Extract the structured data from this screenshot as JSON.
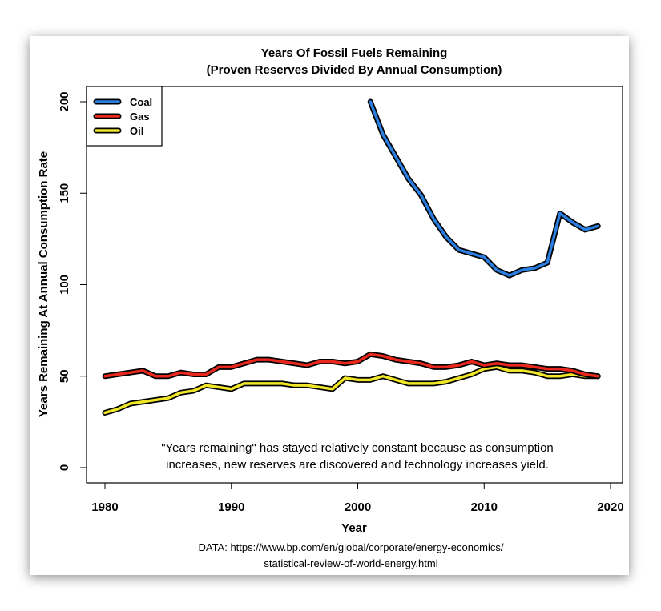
{
  "chart_data": {
    "type": "line",
    "title": "Years Of Fossil Fuels Remaining",
    "subtitle": "(Proven Reserves Divided By Annual Consumption)",
    "xlabel": "Year",
    "ylabel": "Years Remaining At Annual Consumption Rate",
    "xlim": [
      1978,
      2021
    ],
    "ylim": [
      -7,
      207
    ],
    "xticks": [
      "1980",
      "1990",
      "2000",
      "2010",
      "2020"
    ],
    "yticks": [
      "0",
      "50",
      "100",
      "150",
      "200"
    ],
    "grid": false,
    "legend_position": "top-left",
    "annotation": [
      "\"Years remaining\" has stayed relatively constant because as consumption",
      "increases, new reserves are discovered and technology increases yield."
    ],
    "source": [
      "DATA: https://www.bp.com/en/global/corporate/energy-economics/",
      "statistical-review-of-world-energy.html"
    ],
    "series": [
      {
        "name": "Coal",
        "color": "#2b7fe0",
        "x": [
          2001,
          2002,
          2003,
          2004,
          2005,
          2006,
          2007,
          2008,
          2009,
          2010,
          2011,
          2012,
          2013,
          2014,
          2015,
          2016,
          2017,
          2018,
          2019
        ],
        "values": [
          200,
          182,
          170,
          158,
          149,
          136,
          126,
          119,
          117,
          115,
          108,
          105,
          108,
          109,
          112,
          139,
          134,
          130,
          132
        ]
      },
      {
        "name": "Gas",
        "color": "#e8281c",
        "x": [
          1980,
          1981,
          1982,
          1983,
          1984,
          1985,
          1986,
          1987,
          1988,
          1989,
          1990,
          1991,
          1992,
          1993,
          1994,
          1995,
          1996,
          1997,
          1998,
          1999,
          2000,
          2001,
          2002,
          2003,
          2004,
          2005,
          2006,
          2007,
          2008,
          2009,
          2010,
          2011,
          2012,
          2013,
          2014,
          2015,
          2016,
          2017,
          2018,
          2019
        ],
        "values": [
          50,
          51,
          52,
          53,
          50,
          50,
          52,
          51,
          51,
          55,
          55,
          57,
          59,
          59,
          58,
          57,
          56,
          58,
          58,
          57,
          58,
          62,
          61,
          59,
          58,
          57,
          55,
          55,
          56,
          58,
          56,
          57,
          56,
          56,
          55,
          54,
          54,
          53,
          51,
          50
        ]
      },
      {
        "name": "Oil",
        "color": "#f0e62a",
        "x": [
          1980,
          1981,
          1982,
          1983,
          1984,
          1985,
          1986,
          1987,
          1988,
          1989,
          1990,
          1991,
          1992,
          1993,
          1994,
          1995,
          1996,
          1997,
          1998,
          1999,
          2000,
          2001,
          2002,
          2003,
          2004,
          2005,
          2006,
          2007,
          2008,
          2009,
          2010,
          2011,
          2012,
          2013,
          2014,
          2015,
          2016,
          2017,
          2018,
          2019
        ],
        "values": [
          30,
          32,
          35,
          36,
          37,
          38,
          41,
          42,
          45,
          44,
          43,
          46,
          46,
          46,
          46,
          45,
          45,
          44,
          43,
          49,
          48,
          48,
          50,
          48,
          46,
          46,
          46,
          47,
          49,
          51,
          54,
          55,
          53,
          53,
          52,
          50,
          50,
          51,
          50,
          50
        ]
      }
    ]
  }
}
